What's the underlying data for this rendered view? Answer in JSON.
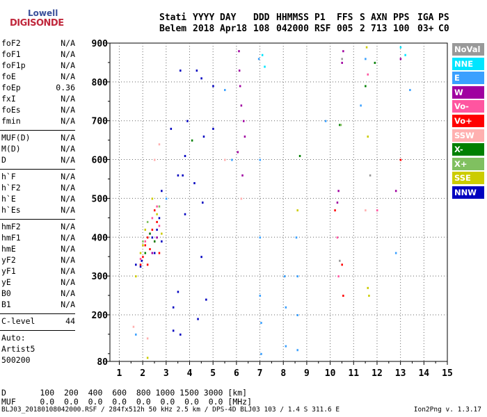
{
  "logo": {
    "top": "Lowell",
    "bottom": "DIGISONDE"
  },
  "header": {
    "labels": [
      "Stati",
      "YYYY",
      "DAY",
      "DDD",
      "HHMMSS",
      "P1",
      "FFS",
      "S",
      "AXN",
      "PPS",
      "IGA",
      "PS"
    ],
    "values": [
      "Belem",
      "2018",
      "Apr18",
      "108",
      "042000",
      "RSF",
      "005",
      "2",
      "713",
      "100",
      "03+",
      "C0"
    ]
  },
  "params_group1": [
    {
      "label": "foF2",
      "value": "N/A"
    },
    {
      "label": "foF1",
      "value": "N/A"
    },
    {
      "label": "foF1p",
      "value": "N/A"
    },
    {
      "label": "foE",
      "value": "N/A"
    },
    {
      "label": "foEp",
      "value": "0.36"
    },
    {
      "label": "fxI",
      "value": "N/A"
    },
    {
      "label": "foEs",
      "value": "N/A"
    },
    {
      "label": "fmin",
      "value": "N/A"
    }
  ],
  "params_group2": [
    {
      "label": "MUF(D)",
      "value": "N/A"
    },
    {
      "label": "M(D)",
      "value": "N/A"
    },
    {
      "label": "D",
      "value": "N/A"
    }
  ],
  "params_group3": [
    {
      "label": "h`F",
      "value": "N/A"
    },
    {
      "label": "h`F2",
      "value": "N/A"
    },
    {
      "label": "h`E",
      "value": "N/A"
    },
    {
      "label": "h`Es",
      "value": "N/A"
    }
  ],
  "params_group4": [
    {
      "label": "hmF2",
      "value": "N/A"
    },
    {
      "label": "hmF1",
      "value": "N/A"
    },
    {
      "label": "hmE",
      "value": "N/A"
    },
    {
      "label": "yF2",
      "value": "N/A"
    },
    {
      "label": "yF1",
      "value": "N/A"
    },
    {
      "label": "yE",
      "value": "N/A"
    },
    {
      "label": "B0",
      "value": "N/A"
    },
    {
      "label": "B1",
      "value": "N/A"
    }
  ],
  "clevel": {
    "label": "C-level",
    "value": "44"
  },
  "auto": [
    "Auto:",
    "Artist5",
    "500200"
  ],
  "legend": [
    {
      "label": "NoVal",
      "color": "#999999"
    },
    {
      "label": "NNE",
      "color": "#00e5ff"
    },
    {
      "label": "E",
      "color": "#3aa0ff"
    },
    {
      "label": "W",
      "color": "#a000a0"
    },
    {
      "label": "Vo-",
      "color": "#ff55a0"
    },
    {
      "label": "Vo+",
      "color": "#ff0000"
    },
    {
      "label": "SSW",
      "color": "#ffb0b0"
    },
    {
      "label": "X-",
      "color": "#008000"
    },
    {
      "label": "X+",
      "color": "#80c060"
    },
    {
      "label": "SSE",
      "color": "#cccc00"
    },
    {
      "label": "NNW",
      "color": "#0000c0"
    }
  ],
  "bottom": {
    "d_label": "D",
    "d_values": [
      "100",
      "200",
      "400",
      "600",
      "800",
      "1000",
      "1500",
      "3000"
    ],
    "d_unit": "[km]",
    "muf_label": "MUF",
    "muf_values": [
      "0.0",
      "0.0",
      "0.0",
      "0.0",
      "0.0",
      "0.0",
      "0.0",
      "0.0"
    ],
    "muf_unit": "[MHz]"
  },
  "footer": {
    "left": "BLJ03_20180108042000.RSF / 284fx512h 50 kHz 2.5 km / DPS-4D BLJ03 103 / 1.4 S 311.6 E",
    "right": "Ion2Png v. 1.3.17"
  },
  "chart_data": {
    "type": "scatter",
    "xlim": [
      0.6,
      15
    ],
    "ylim": [
      80,
      900
    ],
    "xticks": [
      1,
      2,
      3,
      4,
      5,
      6,
      7,
      8,
      9,
      10,
      11,
      12,
      13,
      14,
      15
    ],
    "yticks": [
      80,
      200,
      300,
      400,
      500,
      600,
      700,
      800,
      900
    ],
    "grid": true,
    "legend_placement": "right",
    "series": [
      {
        "name": "NNW",
        "color": "#0000c0",
        "x": [
          1.7,
          1.9,
          1.95,
          2.4,
          2.5,
          2.6,
          2.7,
          2.8,
          3.2,
          3.3,
          3.3,
          3.5,
          3.6,
          3.7,
          3.8,
          3.8,
          3.9,
          4.2,
          4.3,
          4.35,
          4.5,
          4.55,
          4.6,
          4.7,
          5.0,
          5.0,
          2.8,
          3.5,
          3.6,
          4.5
        ],
        "y": [
          330,
          325,
          340,
          400,
          360,
          420,
          450,
          390,
          680,
          220,
          160,
          560,
          830,
          560,
          610,
          460,
          700,
          540,
          830,
          190,
          810,
          490,
          660,
          240,
          790,
          680,
          520,
          260,
          150,
          350
        ]
      },
      {
        "name": "W",
        "color": "#a000a0",
        "x": [
          6.1,
          6.12,
          6.15,
          6.2,
          6.3,
          6.35,
          10.3,
          10.35,
          10.5,
          10.55,
          12.8,
          13.0,
          2.4,
          2.6,
          6.05,
          6.25
        ],
        "y": [
          880,
          830,
          790,
          740,
          700,
          660,
          490,
          520,
          850,
          880,
          520,
          860,
          360,
          400,
          620,
          560
        ]
      },
      {
        "name": "E",
        "color": "#3aa0ff",
        "x": [
          6.95,
          7.0,
          7.0,
          7.0,
          7.05,
          7.05,
          8.05,
          8.1,
          8.1,
          8.55,
          8.6,
          8.6,
          8.6,
          5.5,
          5.8,
          12.8,
          13.4,
          9.8,
          11.3,
          11.5,
          3.0,
          1.7
        ],
        "y": [
          860,
          600,
          400,
          250,
          180,
          100,
          300,
          220,
          120,
          400,
          300,
          200,
          110,
          780,
          600,
          360,
          780,
          700,
          740,
          860,
          500,
          150
        ]
      },
      {
        "name": "Vo+",
        "color": "#ff0000",
        "x": [
          1.9,
          2.0,
          2.1,
          2.2,
          2.3,
          2.4,
          2.5,
          2.6,
          2.7,
          2.2,
          2.5,
          10.2,
          10.5,
          10.55,
          13.0
        ],
        "y": [
          330,
          350,
          380,
          400,
          370,
          420,
          390,
          440,
          360,
          330,
          470,
          470,
          330,
          250,
          600
        ]
      },
      {
        "name": "Vo-",
        "color": "#ff55a0",
        "x": [
          1.9,
          2.1,
          2.3,
          2.4,
          2.6,
          2.7,
          10.3,
          10.35,
          11.6,
          12.0
        ],
        "y": [
          345,
          390,
          410,
          450,
          480,
          430,
          400,
          300,
          820,
          470
        ]
      },
      {
        "name": "SSE",
        "color": "#cccc00",
        "x": [
          1.7,
          1.9,
          2.0,
          2.1,
          2.4,
          2.6,
          2.8,
          11.55,
          11.6,
          11.65,
          11.6,
          8.6,
          2.2
        ],
        "y": [
          300,
          360,
          380,
          420,
          500,
          460,
          410,
          890,
          270,
          250,
          660,
          470,
          90
        ]
      },
      {
        "name": "X-",
        "color": "#008000",
        "x": [
          2.1,
          2.3,
          2.5,
          4.1,
          8.7,
          10.4,
          11.5,
          11.9
        ],
        "y": [
          360,
          410,
          390,
          650,
          610,
          690,
          790,
          850
        ]
      },
      {
        "name": "X+",
        "color": "#80c060",
        "x": [
          2.0,
          2.2,
          2.7,
          10.45
        ],
        "y": [
          390,
          440,
          480,
          690
        ]
      },
      {
        "name": "NNE",
        "color": "#00e5ff",
        "x": [
          7.1,
          7.2,
          13.0,
          13.2
        ],
        "y": [
          870,
          840,
          890,
          870
        ]
      },
      {
        "name": "SSW",
        "color": "#ffb0b0",
        "x": [
          1.6,
          2.2,
          2.5,
          6.2,
          5.5,
          11.5,
          2.7
        ],
        "y": [
          170,
          140,
          600,
          500,
          600,
          470,
          640
        ]
      },
      {
        "name": "NoVal",
        "color": "#999999",
        "x": [
          10.4,
          10.5,
          11.7
        ],
        "y": [
          340,
          860,
          560
        ]
      }
    ]
  }
}
